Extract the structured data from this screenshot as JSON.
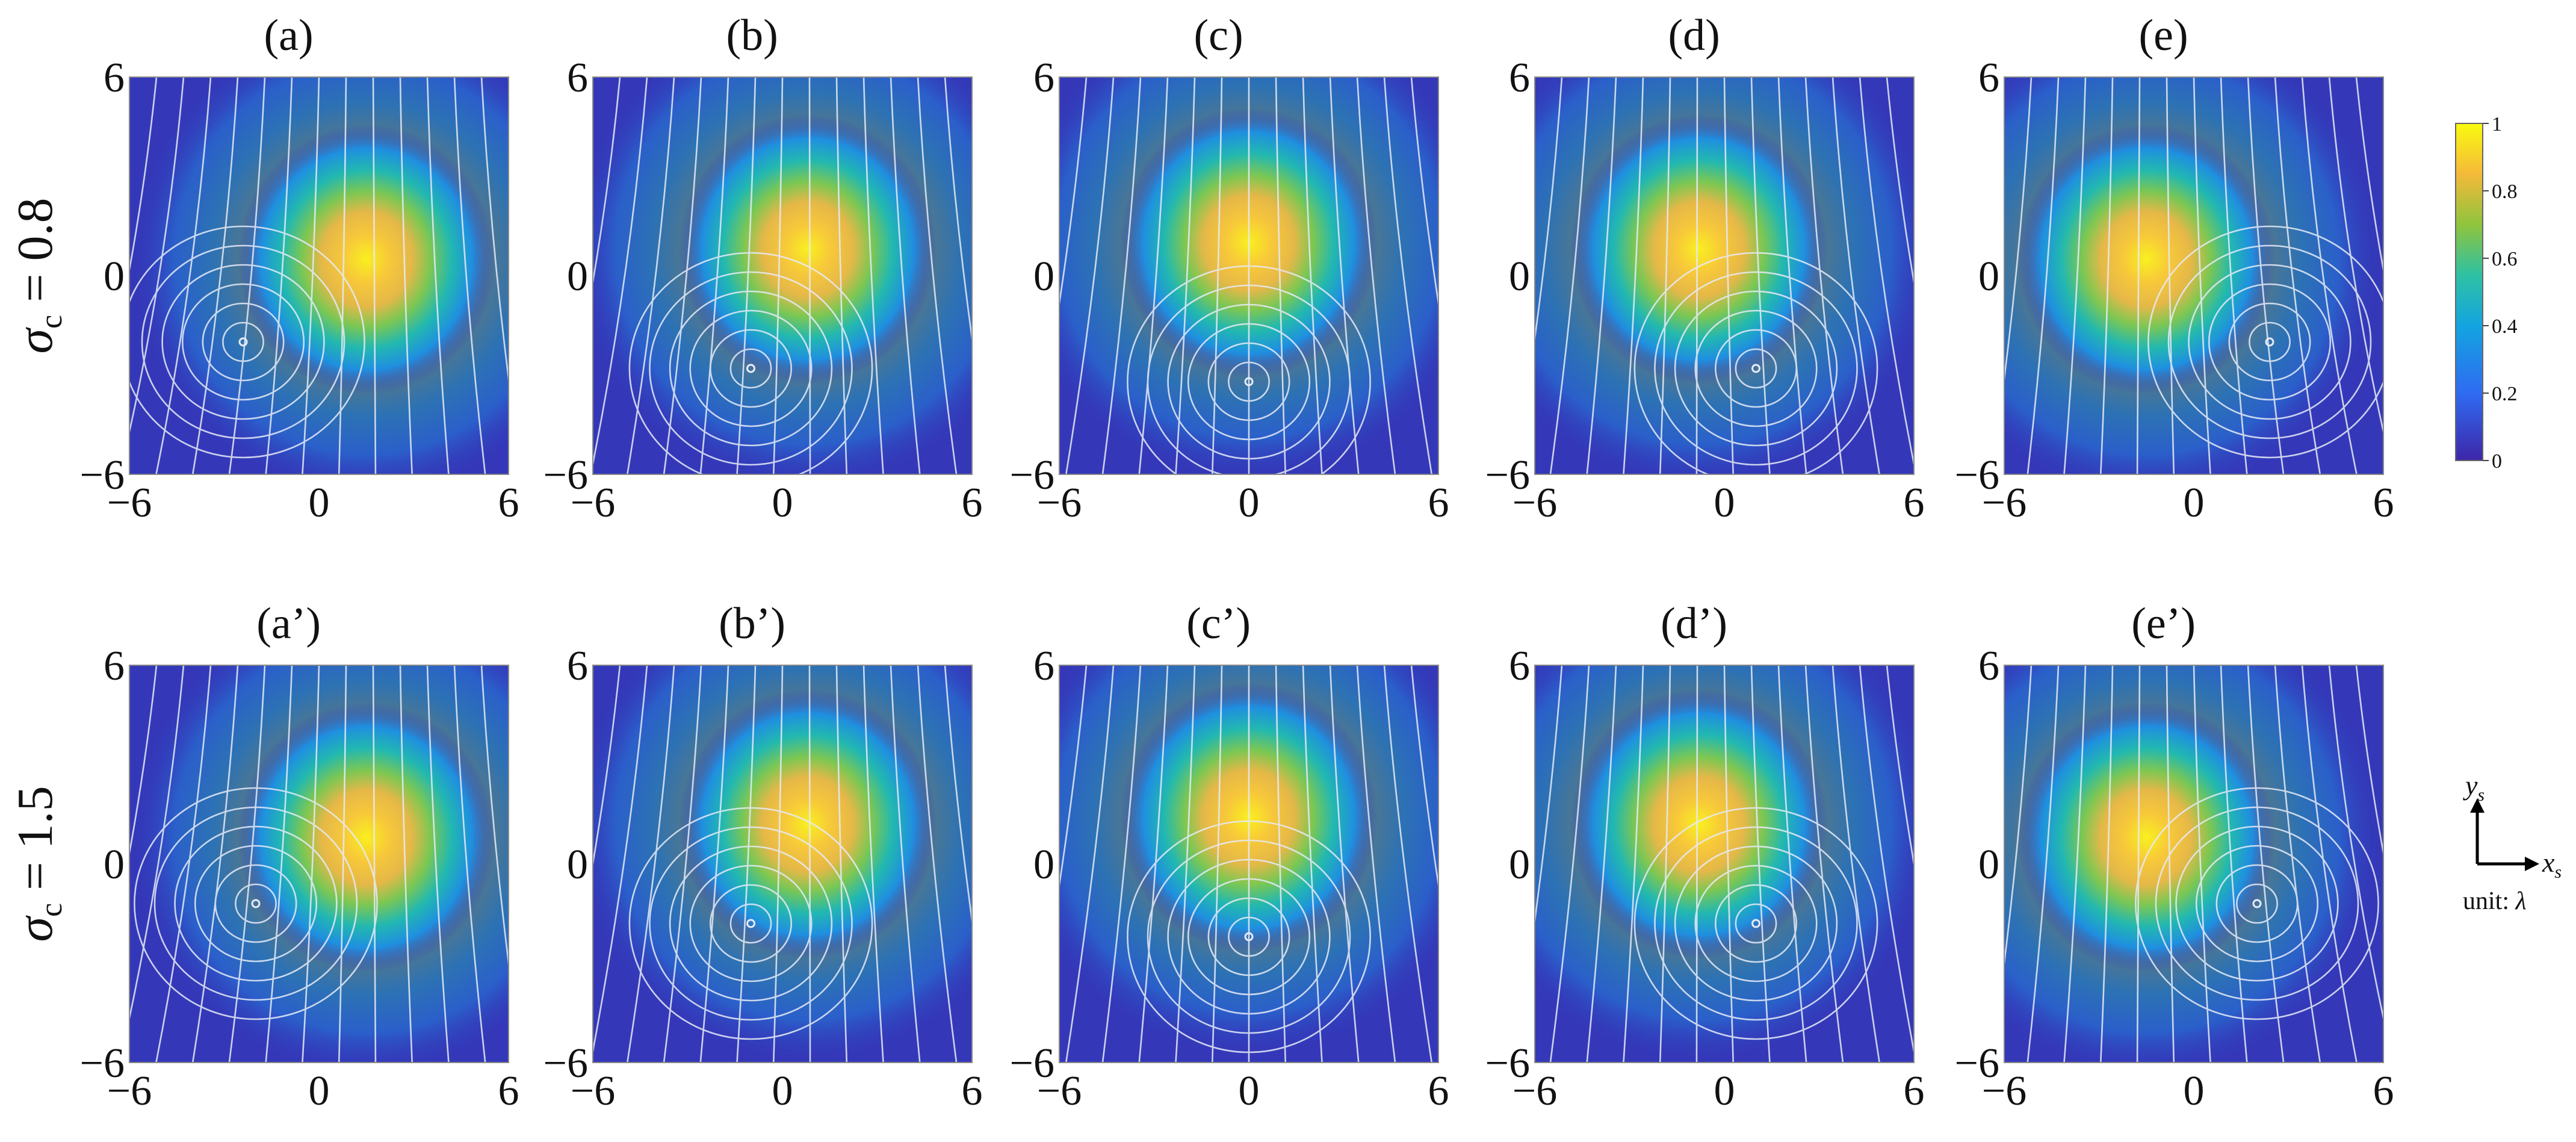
{
  "chart_data": {
    "type": "heatmap",
    "overlay": "streamlines",
    "colormap": "parula",
    "x_range": [
      -6,
      6
    ],
    "y_range": [
      -6,
      6
    ],
    "x_ticks": [
      "−6",
      "0",
      "6"
    ],
    "y_ticks": [
      "6",
      "0",
      "−6"
    ],
    "colorbar": {
      "range": [
        0,
        1
      ],
      "ticks": [
        "1",
        "0.8",
        "0.6",
        "0.4",
        "0.2",
        "0"
      ]
    },
    "rows": [
      {
        "label_prefix": "σ",
        "label_sub": "c",
        "label_value": " = 0.8",
        "panels": [
          {
            "title": "(a)",
            "intensity_peak": [
              1.5,
              0.5
            ],
            "vortex": [
              -2.4,
              -2.0
            ]
          },
          {
            "title": "(b)",
            "intensity_peak": [
              0.8,
              0.8
            ],
            "vortex": [
              -1.0,
              -2.8
            ]
          },
          {
            "title": "(c)",
            "intensity_peak": [
              0.0,
              1.0
            ],
            "vortex": [
              0.0,
              -3.2
            ]
          },
          {
            "title": "(d)",
            "intensity_peak": [
              -0.8,
              0.8
            ],
            "vortex": [
              1.0,
              -2.8
            ]
          },
          {
            "title": "(e)",
            "intensity_peak": [
              -1.5,
              0.5
            ],
            "vortex": [
              2.4,
              -2.0
            ]
          }
        ]
      },
      {
        "label_prefix": "σ",
        "label_sub": "c",
        "label_value": " = 1.5",
        "panels": [
          {
            "title": "(a’)",
            "intensity_peak": [
              1.5,
              0.8
            ],
            "vortex": [
              -2.0,
              -1.2
            ]
          },
          {
            "title": "(b’)",
            "intensity_peak": [
              0.8,
              1.2
            ],
            "vortex": [
              -1.0,
              -1.8
            ]
          },
          {
            "title": "(c’)",
            "intensity_peak": [
              0.0,
              1.4
            ],
            "vortex": [
              0.0,
              -2.2
            ]
          },
          {
            "title": "(d’)",
            "intensity_peak": [
              -0.8,
              1.2
            ],
            "vortex": [
              1.0,
              -1.8
            ]
          },
          {
            "title": "(e’)",
            "intensity_peak": [
              -1.5,
              0.8
            ],
            "vortex": [
              2.0,
              -1.2
            ]
          }
        ]
      }
    ],
    "axes_indicator": {
      "y_label": "y",
      "y_sub": "s",
      "x_label": "x",
      "x_sub": "s",
      "unit_text": "unit: ",
      "unit_symbol": "λ"
    }
  }
}
